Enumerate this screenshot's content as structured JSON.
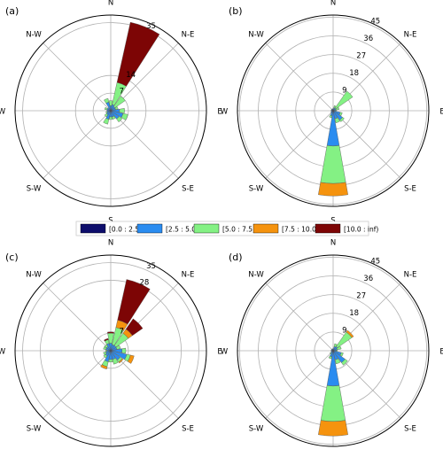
{
  "figure": {
    "legend": {
      "entries": [
        {
          "label": "[0.0 : 2.5)",
          "color": "#0d0d6b"
        },
        {
          "label": "[2.5 : 5.0)",
          "color": "#2a8cf0"
        },
        {
          "label": "[5.0 : 7.5)",
          "color": "#84f184"
        },
        {
          "label": "[7.5 : 10.0)",
          "color": "#f5930e"
        },
        {
          "label": "[10.0 : inf)",
          "color": "#7d0505"
        }
      ]
    }
  },
  "chart_data": [
    {
      "type": "windrose",
      "panel_label": "(a)",
      "directions": [
        "N",
        "N-E",
        "E",
        "S-E",
        "S",
        "S-W",
        "W",
        "N-W"
      ],
      "rmax": 38,
      "radial_ticks": [
        7,
        14,
        35
      ],
      "petals": [
        {
          "dir": 0,
          "stack": [
            0.5,
            1.5,
            2.0,
            0,
            0
          ]
        },
        {
          "dir": 22.5,
          "stack": [
            0.5,
            2.0,
            9.0,
            0,
            24.5
          ]
        },
        {
          "dir": 45,
          "stack": [
            0.5,
            1.5,
            5.0,
            0,
            0
          ]
        },
        {
          "dir": 67.5,
          "stack": [
            0.5,
            1.5,
            1.0,
            0,
            0
          ]
        },
        {
          "dir": 90,
          "stack": [
            0.5,
            3.0,
            2.0,
            0,
            0
          ]
        },
        {
          "dir": 112.5,
          "stack": [
            0.5,
            4.5,
            2.0,
            0,
            0
          ]
        },
        {
          "dir": 135,
          "stack": [
            0.5,
            3.5,
            1.5,
            0,
            0
          ]
        },
        {
          "dir": 157.5,
          "stack": [
            0.5,
            2.0,
            1.0,
            0,
            0
          ]
        },
        {
          "dir": 180,
          "stack": [
            0.5,
            2.0,
            1.0,
            0,
            0
          ]
        },
        {
          "dir": 202.5,
          "stack": [
            0.5,
            3.0,
            2.0,
            0,
            0
          ]
        },
        {
          "dir": 225,
          "stack": [
            0.5,
            1.5,
            1.0,
            0,
            0
          ]
        },
        {
          "dir": 247.5,
          "stack": [
            0.5,
            1.0,
            0.5,
            0,
            0
          ]
        },
        {
          "dir": 270,
          "stack": [
            0.5,
            1.0,
            0,
            0,
            0
          ]
        },
        {
          "dir": 292.5,
          "stack": [
            0.5,
            1.0,
            1.0,
            0,
            0
          ]
        },
        {
          "dir": 315,
          "stack": [
            0.5,
            1.0,
            0,
            0,
            0
          ]
        },
        {
          "dir": 337.5,
          "stack": [
            0.5,
            3.0,
            1.5,
            0,
            0
          ]
        }
      ]
    },
    {
      "type": "windrose",
      "panel_label": "(b)",
      "directions": [
        "N",
        "N-E",
        "E",
        "S-E",
        "S",
        "S-W",
        "W",
        "N-W"
      ],
      "rmax": 46,
      "radial_ticks": [
        9,
        18,
        27,
        36,
        45
      ],
      "petals": [
        {
          "dir": 0,
          "stack": [
            0.5,
            0.5,
            0,
            0,
            0
          ]
        },
        {
          "dir": 22.5,
          "stack": [
            0.5,
            1.0,
            1.0,
            0,
            0
          ]
        },
        {
          "dir": 45,
          "stack": [
            0.5,
            1.0,
            10.0,
            0,
            0
          ]
        },
        {
          "dir": 67.5,
          "stack": [
            0.5,
            1.0,
            1.5,
            0,
            0
          ]
        },
        {
          "dir": 90,
          "stack": [
            0.5,
            0.5,
            0.5,
            0,
            0
          ]
        },
        {
          "dir": 112.5,
          "stack": [
            0.5,
            3.0,
            1.0,
            0,
            0
          ]
        },
        {
          "dir": 135,
          "stack": [
            0.5,
            5.0,
            1.0,
            0,
            0
          ]
        },
        {
          "dir": 157.5,
          "stack": [
            0.5,
            3.5,
            2.0,
            0,
            0
          ]
        },
        {
          "dir": 180,
          "stack": [
            1.0,
            16.0,
            18.0,
            6.0,
            0
          ]
        },
        {
          "dir": 202.5,
          "stack": [
            0.5,
            2.0,
            1.0,
            0,
            0
          ]
        },
        {
          "dir": 225,
          "stack": [
            0.5,
            1.0,
            0,
            0,
            0
          ]
        },
        {
          "dir": 247.5,
          "stack": [
            0.5,
            0.5,
            0,
            0,
            0
          ]
        },
        {
          "dir": 270,
          "stack": [
            0.5,
            0.5,
            0,
            0,
            0
          ]
        },
        {
          "dir": 292.5,
          "stack": [
            0.5,
            0.5,
            0,
            0,
            0
          ]
        },
        {
          "dir": 315,
          "stack": [
            0.5,
            0.5,
            0,
            0,
            0
          ]
        },
        {
          "dir": 337.5,
          "stack": [
            0.5,
            0.5,
            0,
            0,
            0
          ]
        }
      ]
    },
    {
      "type": "windrose",
      "panel_label": "(c)",
      "directions": [
        "N",
        "N-E",
        "E",
        "S-E",
        "S",
        "S-W",
        "W",
        "N-W"
      ],
      "rmax": 38,
      "radial_ticks": [
        7,
        28,
        35
      ],
      "petals": [
        {
          "dir": 0,
          "stack": [
            0.5,
            2.5,
            4.0,
            0,
            0.5
          ]
        },
        {
          "dir": 22.5,
          "stack": [
            0.5,
            2.0,
            7.0,
            3.0,
            16.5
          ]
        },
        {
          "dir": 45,
          "stack": [
            0.5,
            2.0,
            6.0,
            2.0,
            5.0
          ]
        },
        {
          "dir": 67.5,
          "stack": [
            0.5,
            2.0,
            1.5,
            0,
            0
          ]
        },
        {
          "dir": 90,
          "stack": [
            0.5,
            4.0,
            1.5,
            0,
            0
          ]
        },
        {
          "dir": 112.5,
          "stack": [
            0.5,
            6.0,
            1.5,
            1.5,
            0
          ]
        },
        {
          "dir": 135,
          "stack": [
            0.5,
            4.0,
            1.0,
            0.5,
            0
          ]
        },
        {
          "dir": 157.5,
          "stack": [
            0.5,
            3.0,
            2.0,
            0,
            0
          ]
        },
        {
          "dir": 180,
          "stack": [
            0.5,
            3.0,
            1.0,
            0,
            0
          ]
        },
        {
          "dir": 202.5,
          "stack": [
            0.5,
            4.0,
            2.0,
            1.0,
            0
          ]
        },
        {
          "dir": 225,
          "stack": [
            0.5,
            2.0,
            1.0,
            0,
            0
          ]
        },
        {
          "dir": 247.5,
          "stack": [
            0.5,
            1.5,
            1.0,
            0,
            0
          ]
        },
        {
          "dir": 270,
          "stack": [
            0.5,
            1.0,
            0.5,
            0,
            0
          ]
        },
        {
          "dir": 292.5,
          "stack": [
            0.5,
            1.5,
            1.0,
            0,
            0
          ]
        },
        {
          "dir": 315,
          "stack": [
            0.5,
            1.5,
            1.0,
            0,
            0
          ]
        },
        {
          "dir": 337.5,
          "stack": [
            0.5,
            2.5,
            1.5,
            0,
            0.5
          ]
        }
      ]
    },
    {
      "type": "windrose",
      "panel_label": "(d)",
      "directions": [
        "N",
        "N-E",
        "E",
        "S-E",
        "S",
        "S-W",
        "W",
        "N-W"
      ],
      "rmax": 46,
      "radial_ticks": [
        9,
        18,
        27,
        36,
        45
      ],
      "petals": [
        {
          "dir": 0,
          "stack": [
            0.5,
            0.5,
            0,
            0,
            0
          ]
        },
        {
          "dir": 22.5,
          "stack": [
            0.5,
            1.5,
            1.5,
            0,
            0
          ]
        },
        {
          "dir": 45,
          "stack": [
            0.5,
            2.0,
            8.5,
            1.0,
            0
          ]
        },
        {
          "dir": 67.5,
          "stack": [
            0.5,
            1.5,
            2.0,
            0,
            0
          ]
        },
        {
          "dir": 90,
          "stack": [
            0.5,
            1.0,
            0.5,
            0,
            0
          ]
        },
        {
          "dir": 112.5,
          "stack": [
            0.5,
            3.5,
            1.0,
            0,
            0
          ]
        },
        {
          "dir": 135,
          "stack": [
            0.5,
            6.5,
            1.5,
            0,
            0
          ]
        },
        {
          "dir": 157.5,
          "stack": [
            0.5,
            4.0,
            2.0,
            0,
            0
          ]
        },
        {
          "dir": 180,
          "stack": [
            1.0,
            16.0,
            17.0,
            7.0,
            0
          ]
        },
        {
          "dir": 202.5,
          "stack": [
            0.5,
            2.5,
            1.0,
            0,
            0
          ]
        },
        {
          "dir": 225,
          "stack": [
            0.5,
            1.0,
            0.5,
            0,
            0
          ]
        },
        {
          "dir": 247.5,
          "stack": [
            0.5,
            0.5,
            0,
            0,
            0
          ]
        },
        {
          "dir": 270,
          "stack": [
            0.5,
            0.5,
            0,
            0,
            0
          ]
        },
        {
          "dir": 292.5,
          "stack": [
            0.5,
            0.5,
            0,
            0,
            0
          ]
        },
        {
          "dir": 315,
          "stack": [
            0.5,
            0.5,
            0,
            0,
            0
          ]
        },
        {
          "dir": 337.5,
          "stack": [
            0.5,
            0.5,
            0,
            0,
            0
          ]
        }
      ]
    }
  ]
}
